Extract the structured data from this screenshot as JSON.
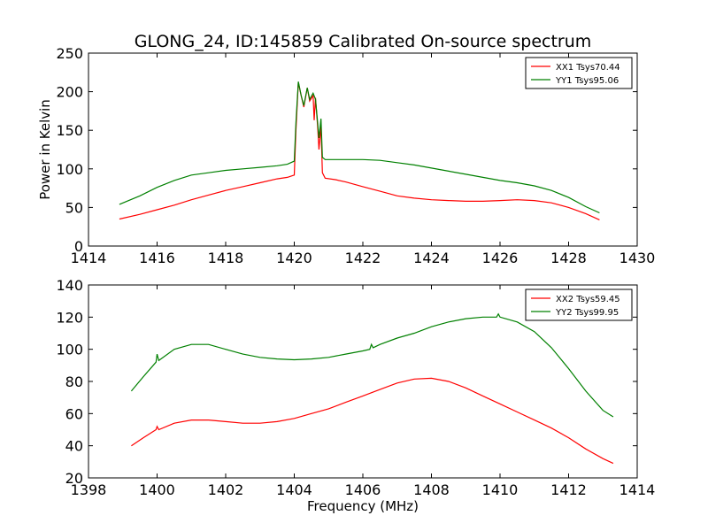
{
  "chart_data": [
    {
      "type": "line",
      "title": "GLONG_24, ID:145859 Calibrated On-source spectrum",
      "xlabel": "",
      "ylabel": "Power in Kelvin",
      "xlim": [
        1414,
        1430
      ],
      "ylim": [
        0,
        250
      ],
      "xticks": [
        "1414",
        "1416",
        "1418",
        "1420",
        "1422",
        "1424",
        "1426",
        "1428",
        "1430"
      ],
      "yticks": [
        "0",
        "50",
        "100",
        "150",
        "200",
        "250"
      ],
      "legend_position": "top-right",
      "series": [
        {
          "name": "XX1 Tsys70.44",
          "color": "#ff0000",
          "points": [
            [
              1414.9,
              35
            ],
            [
              1415.5,
              41
            ],
            [
              1416,
              47
            ],
            [
              1416.5,
              53
            ],
            [
              1417,
              60
            ],
            [
              1417.5,
              66
            ],
            [
              1418,
              72
            ],
            [
              1418.5,
              77
            ],
            [
              1419,
              82
            ],
            [
              1419.5,
              87
            ],
            [
              1419.8,
              89
            ],
            [
              1420.0,
              92
            ],
            [
              1420.05,
              150
            ],
            [
              1420.12,
              212
            ],
            [
              1420.2,
              195
            ],
            [
              1420.28,
              180
            ],
            [
              1420.38,
              205
            ],
            [
              1420.45,
              188
            ],
            [
              1420.55,
              195
            ],
            [
              1420.58,
              163
            ],
            [
              1420.62,
              192
            ],
            [
              1420.68,
              155
            ],
            [
              1420.72,
              125
            ],
            [
              1420.78,
              155
            ],
            [
              1420.82,
              95
            ],
            [
              1420.9,
              88
            ],
            [
              1421.2,
              86
            ],
            [
              1421.5,
              83
            ],
            [
              1422,
              77
            ],
            [
              1422.5,
              71
            ],
            [
              1423,
              65
            ],
            [
              1423.5,
              62
            ],
            [
              1424,
              60
            ],
            [
              1424.5,
              59
            ],
            [
              1425,
              58
            ],
            [
              1425.5,
              58
            ],
            [
              1426,
              59
            ],
            [
              1426.5,
              60
            ],
            [
              1427,
              59
            ],
            [
              1427.5,
              56
            ],
            [
              1428,
              50
            ],
            [
              1428.5,
              42
            ],
            [
              1428.9,
              34
            ]
          ]
        },
        {
          "name": "YY1 Tsys95.06",
          "color": "#008000",
          "points": [
            [
              1414.9,
              54
            ],
            [
              1415.5,
              65
            ],
            [
              1416,
              76
            ],
            [
              1416.5,
              85
            ],
            [
              1417,
              92
            ],
            [
              1417.5,
              95
            ],
            [
              1418,
              98
            ],
            [
              1418.5,
              100
            ],
            [
              1419,
              102
            ],
            [
              1419.5,
              104
            ],
            [
              1419.8,
              106
            ],
            [
              1420.0,
              110
            ],
            [
              1420.05,
              160
            ],
            [
              1420.12,
              213
            ],
            [
              1420.2,
              195
            ],
            [
              1420.28,
              182
            ],
            [
              1420.38,
              205
            ],
            [
              1420.45,
              190
            ],
            [
              1420.55,
              198
            ],
            [
              1420.62,
              190
            ],
            [
              1420.68,
              160
            ],
            [
              1420.72,
              140
            ],
            [
              1420.78,
              165
            ],
            [
              1420.82,
              115
            ],
            [
              1420.9,
              112
            ],
            [
              1421.5,
              112
            ],
            [
              1422,
              112
            ],
            [
              1422.5,
              111
            ],
            [
              1423,
              108
            ],
            [
              1423.5,
              105
            ],
            [
              1424,
              101
            ],
            [
              1424.5,
              97
            ],
            [
              1425,
              93
            ],
            [
              1425.5,
              89
            ],
            [
              1426,
              85
            ],
            [
              1426.5,
              82
            ],
            [
              1427,
              78
            ],
            [
              1427.5,
              72
            ],
            [
              1428,
              63
            ],
            [
              1428.5,
              51
            ],
            [
              1428.9,
              43
            ]
          ]
        }
      ]
    },
    {
      "type": "line",
      "title": "",
      "xlabel": "Frequency (MHz)",
      "ylabel": "",
      "xlim": [
        1398,
        1414
      ],
      "ylim": [
        20,
        140
      ],
      "xticks": [
        "1398",
        "1400",
        "1402",
        "1404",
        "1406",
        "1408",
        "1410",
        "1412",
        "1414"
      ],
      "yticks": [
        "20",
        "40",
        "60",
        "80",
        "100",
        "120",
        "140"
      ],
      "legend_position": "top-right",
      "series": [
        {
          "name": "XX2 Tsys59.45",
          "color": "#ff0000",
          "points": [
            [
              1399.25,
              40
            ],
            [
              1399.6,
              45
            ],
            [
              1399.97,
              50
            ],
            [
              1400.0,
              52
            ],
            [
              1400.05,
              50
            ],
            [
              1400.5,
              54
            ],
            [
              1401,
              56
            ],
            [
              1401.5,
              56
            ],
            [
              1402,
              55
            ],
            [
              1402.5,
              54
            ],
            [
              1403,
              54
            ],
            [
              1403.5,
              55
            ],
            [
              1404,
              57
            ],
            [
              1404.5,
              60
            ],
            [
              1405,
              63
            ],
            [
              1405.5,
              67
            ],
            [
              1406,
              71
            ],
            [
              1406.5,
              75
            ],
            [
              1407,
              79
            ],
            [
              1407.5,
              81.5
            ],
            [
              1408,
              82
            ],
            [
              1408.5,
              80
            ],
            [
              1409,
              76
            ],
            [
              1409.5,
              71
            ],
            [
              1410,
              66
            ],
            [
              1410.5,
              61
            ],
            [
              1411,
              56
            ],
            [
              1411.5,
              51
            ],
            [
              1412,
              45
            ],
            [
              1412.5,
              38
            ],
            [
              1413,
              32
            ],
            [
              1413.3,
              29
            ]
          ]
        },
        {
          "name": "YY2 Tsys99.95",
          "color": "#008000",
          "points": [
            [
              1399.25,
              74
            ],
            [
              1399.6,
              83
            ],
            [
              1399.97,
              92
            ],
            [
              1400.0,
              97
            ],
            [
              1400.05,
              93
            ],
            [
              1400.5,
              100
            ],
            [
              1401,
              103
            ],
            [
              1401.5,
              103
            ],
            [
              1402,
              100
            ],
            [
              1402.5,
              97
            ],
            [
              1403,
              95
            ],
            [
              1403.5,
              94
            ],
            [
              1404,
              93.5
            ],
            [
              1404.5,
              94
            ],
            [
              1405,
              95
            ],
            [
              1405.5,
              97
            ],
            [
              1406,
              99
            ],
            [
              1406.2,
              100
            ],
            [
              1406.25,
              103
            ],
            [
              1406.3,
              101
            ],
            [
              1406.5,
              103
            ],
            [
              1407,
              107
            ],
            [
              1407.5,
              110
            ],
            [
              1408,
              114
            ],
            [
              1408.5,
              117
            ],
            [
              1409,
              119
            ],
            [
              1409.5,
              120
            ],
            [
              1409.9,
              120
            ],
            [
              1409.95,
              122
            ],
            [
              1410,
              120
            ],
            [
              1410.5,
              117
            ],
            [
              1411,
              111
            ],
            [
              1411.5,
              101
            ],
            [
              1412,
              88
            ],
            [
              1412.5,
              74
            ],
            [
              1413,
              62
            ],
            [
              1413.3,
              58
            ]
          ]
        }
      ]
    }
  ]
}
